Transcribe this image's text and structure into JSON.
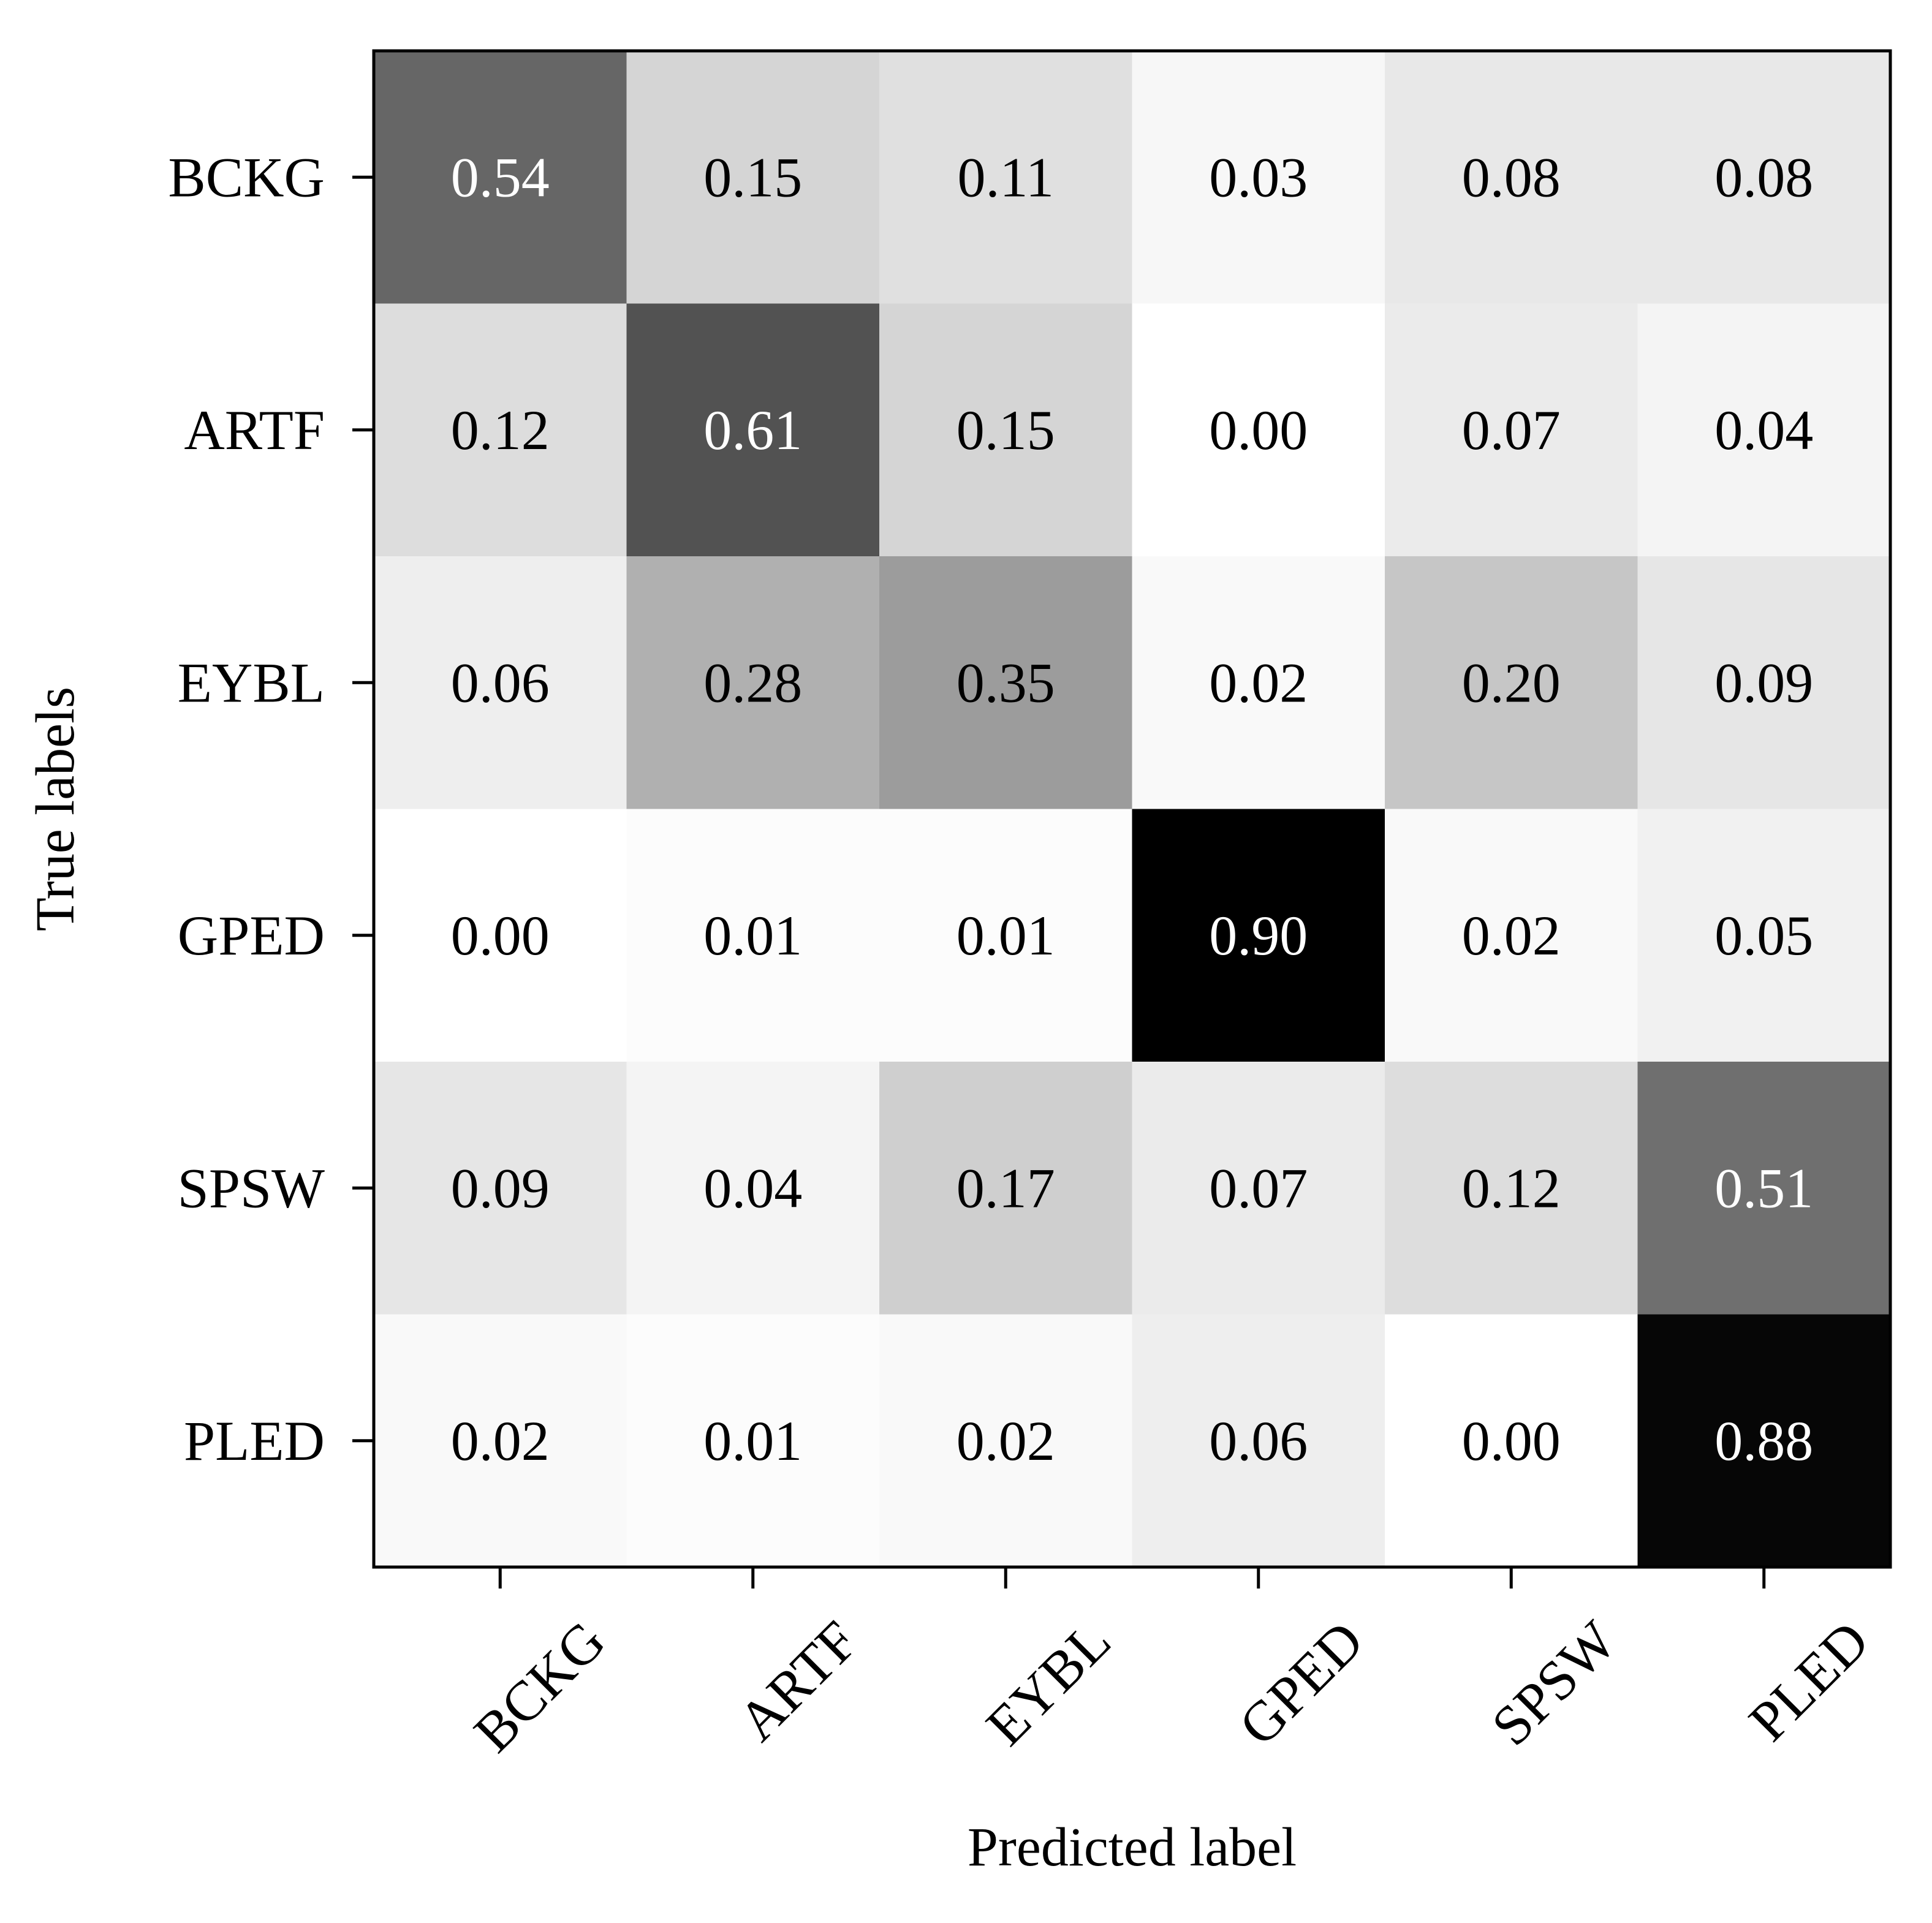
{
  "chart_data": {
    "type": "heatmap",
    "xlabel": "Predicted label",
    "ylabel": "True labels",
    "x_categories": [
      "BCKG",
      "ARTF",
      "EYBL",
      "GPED",
      "SPSW",
      "PLED"
    ],
    "y_categories": [
      "BCKG",
      "ARTF",
      "EYBL",
      "GPED",
      "SPSW",
      "PLED"
    ],
    "values": [
      [
        0.54,
        0.15,
        0.11,
        0.03,
        0.08,
        0.08
      ],
      [
        0.12,
        0.61,
        0.15,
        0.0,
        0.07,
        0.04
      ],
      [
        0.06,
        0.28,
        0.35,
        0.02,
        0.2,
        0.09
      ],
      [
        0.0,
        0.01,
        0.01,
        0.9,
        0.02,
        0.05
      ],
      [
        0.09,
        0.04,
        0.17,
        0.07,
        0.12,
        0.51
      ],
      [
        0.02,
        0.01,
        0.02,
        0.06,
        0.0,
        0.88
      ]
    ],
    "colormap": "greys",
    "value_range": [
      0,
      0.9
    ],
    "x_tick_rotation_deg": 45,
    "colors": {
      "low": "#ffffff",
      "high": "#000000",
      "text_dark": "#000000",
      "text_light": "#ffffff"
    },
    "legend": "none",
    "grid": false
  }
}
